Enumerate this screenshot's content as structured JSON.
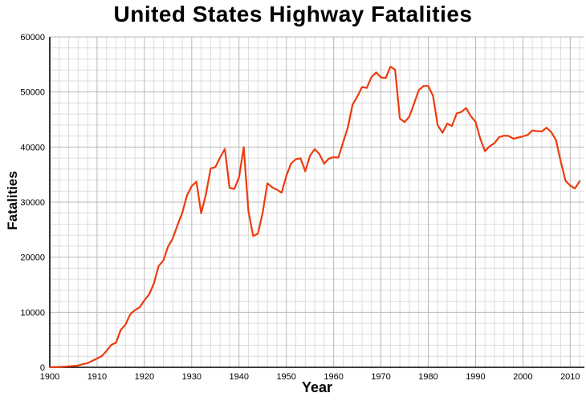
{
  "chart_data": {
    "type": "line",
    "title": "United States Highway Fatalities",
    "xlabel": "Year",
    "ylabel": "Fatalities",
    "xlim": [
      1900,
      2013
    ],
    "ylim": [
      0,
      60000
    ],
    "xticks": [
      1900,
      1910,
      1920,
      1930,
      1940,
      1950,
      1960,
      1970,
      1980,
      1990,
      2000,
      2010
    ],
    "yticks": [
      0,
      10000,
      20000,
      30000,
      40000,
      50000,
      60000
    ],
    "minor_x_step": 2,
    "minor_y_step": 2000,
    "grid": true,
    "legend": "none",
    "colors": {
      "line": "#ee3b0e",
      "grid_minor": "#dcdcdc",
      "grid_major": "#b8b8b8",
      "axis": "#000000",
      "background": "#ffffff",
      "text": "#000000"
    },
    "series": [
      {
        "name": "Fatalities",
        "x": [
          1900,
          1901,
          1902,
          1903,
          1904,
          1905,
          1906,
          1907,
          1908,
          1909,
          1910,
          1911,
          1912,
          1913,
          1914,
          1915,
          1916,
          1917,
          1918,
          1919,
          1920,
          1921,
          1922,
          1923,
          1924,
          1925,
          1926,
          1927,
          1928,
          1929,
          1930,
          1931,
          1932,
          1933,
          1934,
          1935,
          1936,
          1937,
          1938,
          1939,
          1940,
          1941,
          1942,
          1943,
          1944,
          1945,
          1946,
          1947,
          1948,
          1949,
          1950,
          1951,
          1952,
          1953,
          1954,
          1955,
          1956,
          1957,
          1958,
          1959,
          1960,
          1961,
          1962,
          1963,
          1964,
          1965,
          1966,
          1967,
          1968,
          1969,
          1970,
          1971,
          1972,
          1973,
          1974,
          1975,
          1976,
          1977,
          1978,
          1979,
          1980,
          1981,
          1982,
          1983,
          1984,
          1985,
          1986,
          1987,
          1988,
          1989,
          1990,
          1991,
          1992,
          1993,
          1994,
          1995,
          1996,
          1997,
          1998,
          1999,
          2000,
          2001,
          2002,
          2003,
          2004,
          2005,
          2006,
          2007,
          2008,
          2009,
          2010,
          2011,
          2012
        ],
        "y": [
          36,
          54,
          79,
          117,
          172,
          252,
          338,
          581,
          751,
          1174,
          1599,
          2043,
          2968,
          4079,
          4468,
          6779,
          7766,
          9630,
          10390,
          10896,
          12155,
          13253,
          15224,
          18392,
          19400,
          21900,
          23400,
          25800,
          28000,
          31200,
          32900,
          33700,
          27979,
          31363,
          36101,
          36369,
          38089,
          39643,
          32582,
          32386,
          34501,
          39969,
          28309,
          23823,
          24282,
          28076,
          33411,
          32697,
          32259,
          31701,
          34763,
          36996,
          37794,
          37956,
          35586,
          38426,
          39628,
          38702,
          36981,
          37910,
          38137,
          38091,
          40804,
          43564,
          47700,
          49163,
          50894,
          50724,
          52725,
          53543,
          52627,
          52542,
          54589,
          54052,
          45196,
          44525,
          45523,
          47878,
          50331,
          51093,
          51091,
          49301,
          43945,
          42589,
          44257,
          43825,
          46087,
          46390,
          47087,
          45582,
          44599,
          41508,
          39250,
          40150,
          40716,
          41817,
          42065,
          42013,
          41501,
          41717,
          41945,
          42196,
          43005,
          42884,
          42836,
          43510,
          42708,
          41259,
          37423,
          33883,
          32999,
          32479,
          33782
        ]
      }
    ]
  }
}
